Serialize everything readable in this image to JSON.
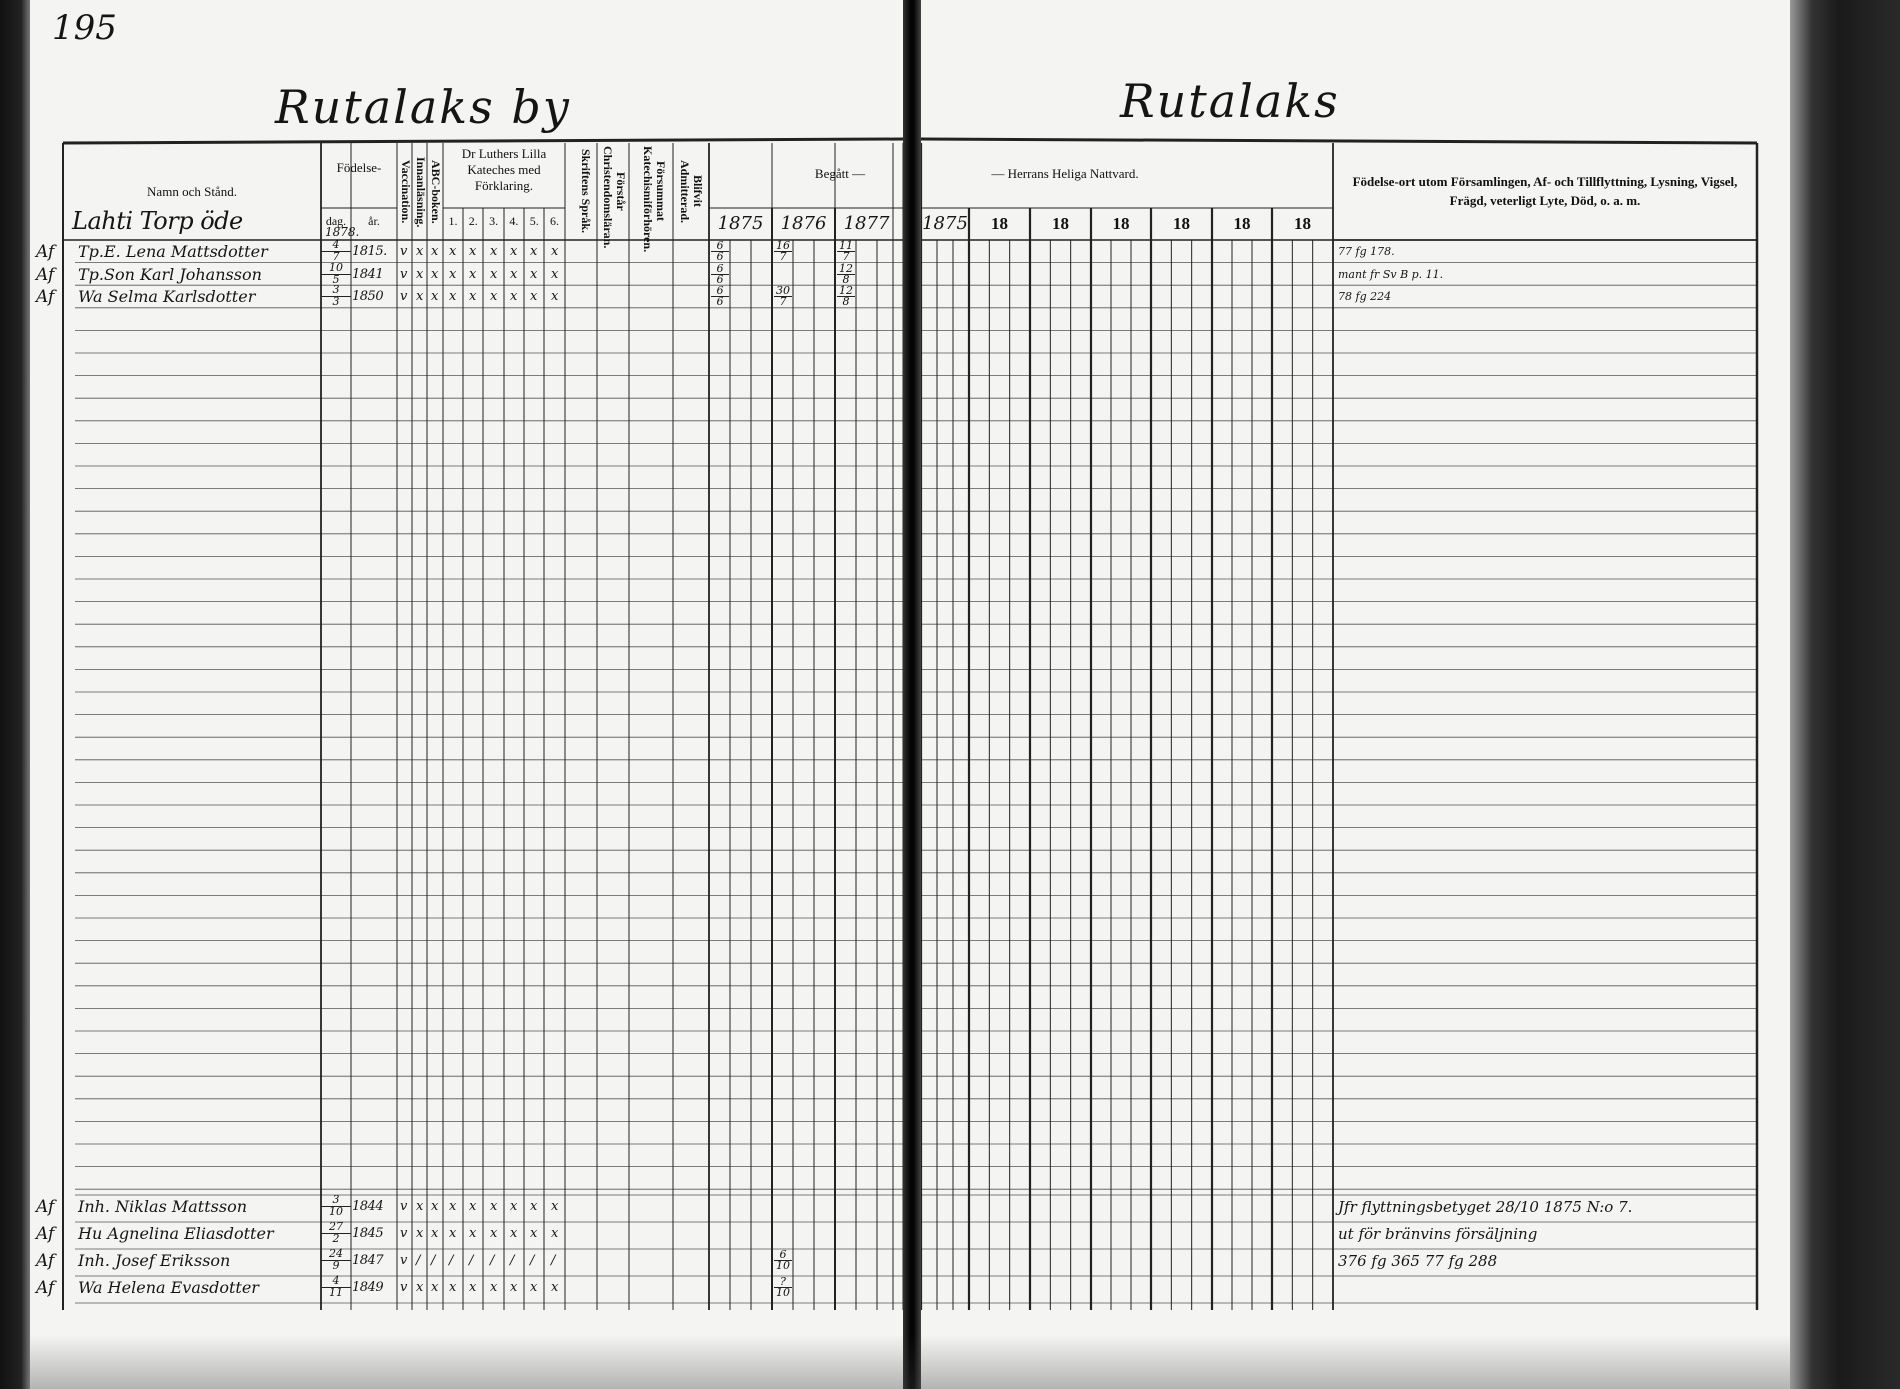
{
  "page_number": "195",
  "left_title": "Rutalaks by",
  "right_title": "Rutalaks",
  "headers": {
    "name": "Namn och Stånd.",
    "birth": "Födelse-",
    "birth_day": "dag.",
    "birth_year": "år.",
    "vaccination": "Vaccination.",
    "reading": "Innanläsning.",
    "abc": "ABC-boken.",
    "luther": "Dr Luthers Lilla Kateches med Förklaring.",
    "luther_parts": [
      "1.",
      "2.",
      "3.",
      "4.",
      "5.",
      "6."
    ],
    "scripture": "Skriftens Språk.",
    "understands": "Förstår Christendomsläran.",
    "missed": "Försummat Katechismiförhören.",
    "admitted": "Blifvit Admitterad.",
    "begatt": "Begått —",
    "nattvard": "— Herrans Heliga Nattvard.",
    "notes": "Födelse-ort utom Församlingen, Af- och Tillflyttning, Lysning, Vigsel, Frägd, veterligt Lyte, Död, o. a. m."
  },
  "years_left": [
    "1875",
    "1876",
    "1877"
  ],
  "years_right": [
    "1875",
    "18",
    "18",
    "18",
    "18",
    "18",
    "18"
  ],
  "household": {
    "place": "Lahti Torp öde",
    "year": "1878."
  },
  "entries": [
    {
      "margin": "Af",
      "name": "Tp.E. Lena Mattsdotter",
      "day": "4",
      "month": "7",
      "year": "1815.",
      "marks": [
        "v",
        "x",
        "x",
        "x",
        "x",
        "x",
        "x",
        "x",
        "x"
      ],
      "c1875": [
        "6",
        "6"
      ],
      "c1876": [
        "16",
        "7"
      ],
      "c1877": [
        "11",
        "7"
      ],
      "note": "77 fg 178."
    },
    {
      "margin": "Af",
      "name": "Tp.Son Karl Johansson",
      "day": "10",
      "month": "5",
      "year": "1841",
      "marks": [
        "v",
        "x",
        "x",
        "x",
        "x",
        "x",
        "x",
        "x",
        "x"
      ],
      "c1875": [
        "6",
        "6"
      ],
      "c1876": null,
      "c1877": [
        "12",
        "8"
      ],
      "note": "mant fr Sv B p. 11."
    },
    {
      "margin": "Af",
      "name": "Wa Selma Karlsdotter",
      "day": "3",
      "month": "3",
      "year": "1850",
      "marks": [
        "v",
        "x",
        "x",
        "x",
        "x",
        "x",
        "x",
        "x",
        "x"
      ],
      "c1875": [
        "6",
        "6"
      ],
      "c1876": [
        "30",
        "7"
      ],
      "c1877": [
        "12",
        "8"
      ],
      "note": "78 fg 224"
    },
    {
      "margin": "Af",
      "name": "Inh. Niklas Mattsson",
      "day": "3",
      "month": "10",
      "year": "1844",
      "marks": [
        "v",
        "x",
        "x",
        "x",
        "x",
        "x",
        "x",
        "x",
        "x"
      ],
      "c1875": null,
      "c1876": null,
      "c1877": null,
      "note": "Jfr flyttningsbetyget 28/10 1875 N:o 7."
    },
    {
      "margin": "Af",
      "name": "Hu Agnelina Eliasdotter",
      "day": "27",
      "month": "2",
      "year": "1845",
      "marks": [
        "v",
        "x",
        "x",
        "x",
        "x",
        "x",
        "x",
        "x",
        "x"
      ],
      "c1875": null,
      "c1876": null,
      "c1877": null,
      "note": "ut för bränvins försäljning"
    },
    {
      "margin": "Af",
      "name": "Inh. Josef Eriksson",
      "day": "24",
      "month": "9",
      "year": "1847",
      "marks": [
        "v",
        "/",
        "/",
        "/",
        "/",
        "/",
        "/",
        "/",
        "/"
      ],
      "c1875": null,
      "c1876": [
        "6",
        "10"
      ],
      "c1877": null,
      "note": "376 fg 365 77 fg 288"
    },
    {
      "margin": "Af",
      "name": "Wa Helena Evasdotter",
      "day": "4",
      "month": "11",
      "year": "1849",
      "marks": [
        "v",
        "x",
        "x",
        "x",
        "x",
        "x",
        "x",
        "x",
        "x"
      ],
      "c1875": null,
      "c1876": [
        "?",
        "10"
      ],
      "c1877": null,
      "note": ""
    }
  ]
}
